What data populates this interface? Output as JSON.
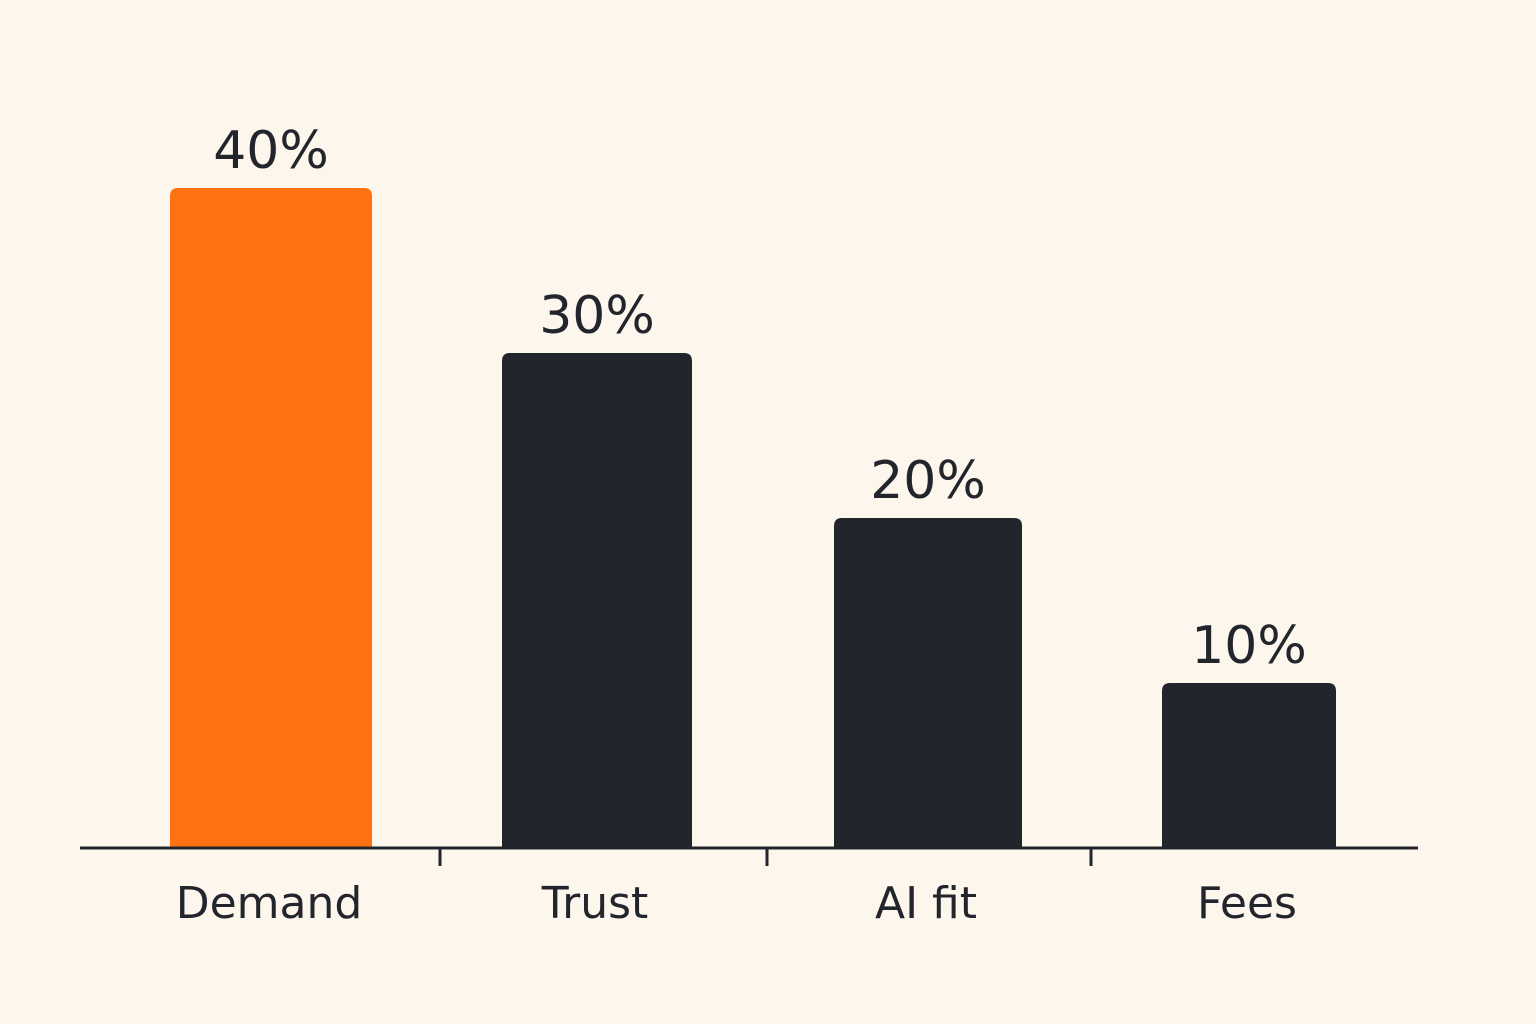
{
  "chart_data": {
    "type": "bar",
    "categories": [
      "Demand",
      "Trust",
      "AI fit",
      "Fees"
    ],
    "values": [
      40,
      30,
      20,
      10
    ],
    "value_labels": [
      "40%",
      "30%",
      "20%",
      "10%"
    ],
    "unit": "%",
    "ylim": [
      0,
      40
    ],
    "grid": false,
    "legend": "none",
    "colors": [
      "#ff7212",
      "#22252c",
      "#22252c",
      "#22252c"
    ],
    "axis_color": "#22252c"
  }
}
